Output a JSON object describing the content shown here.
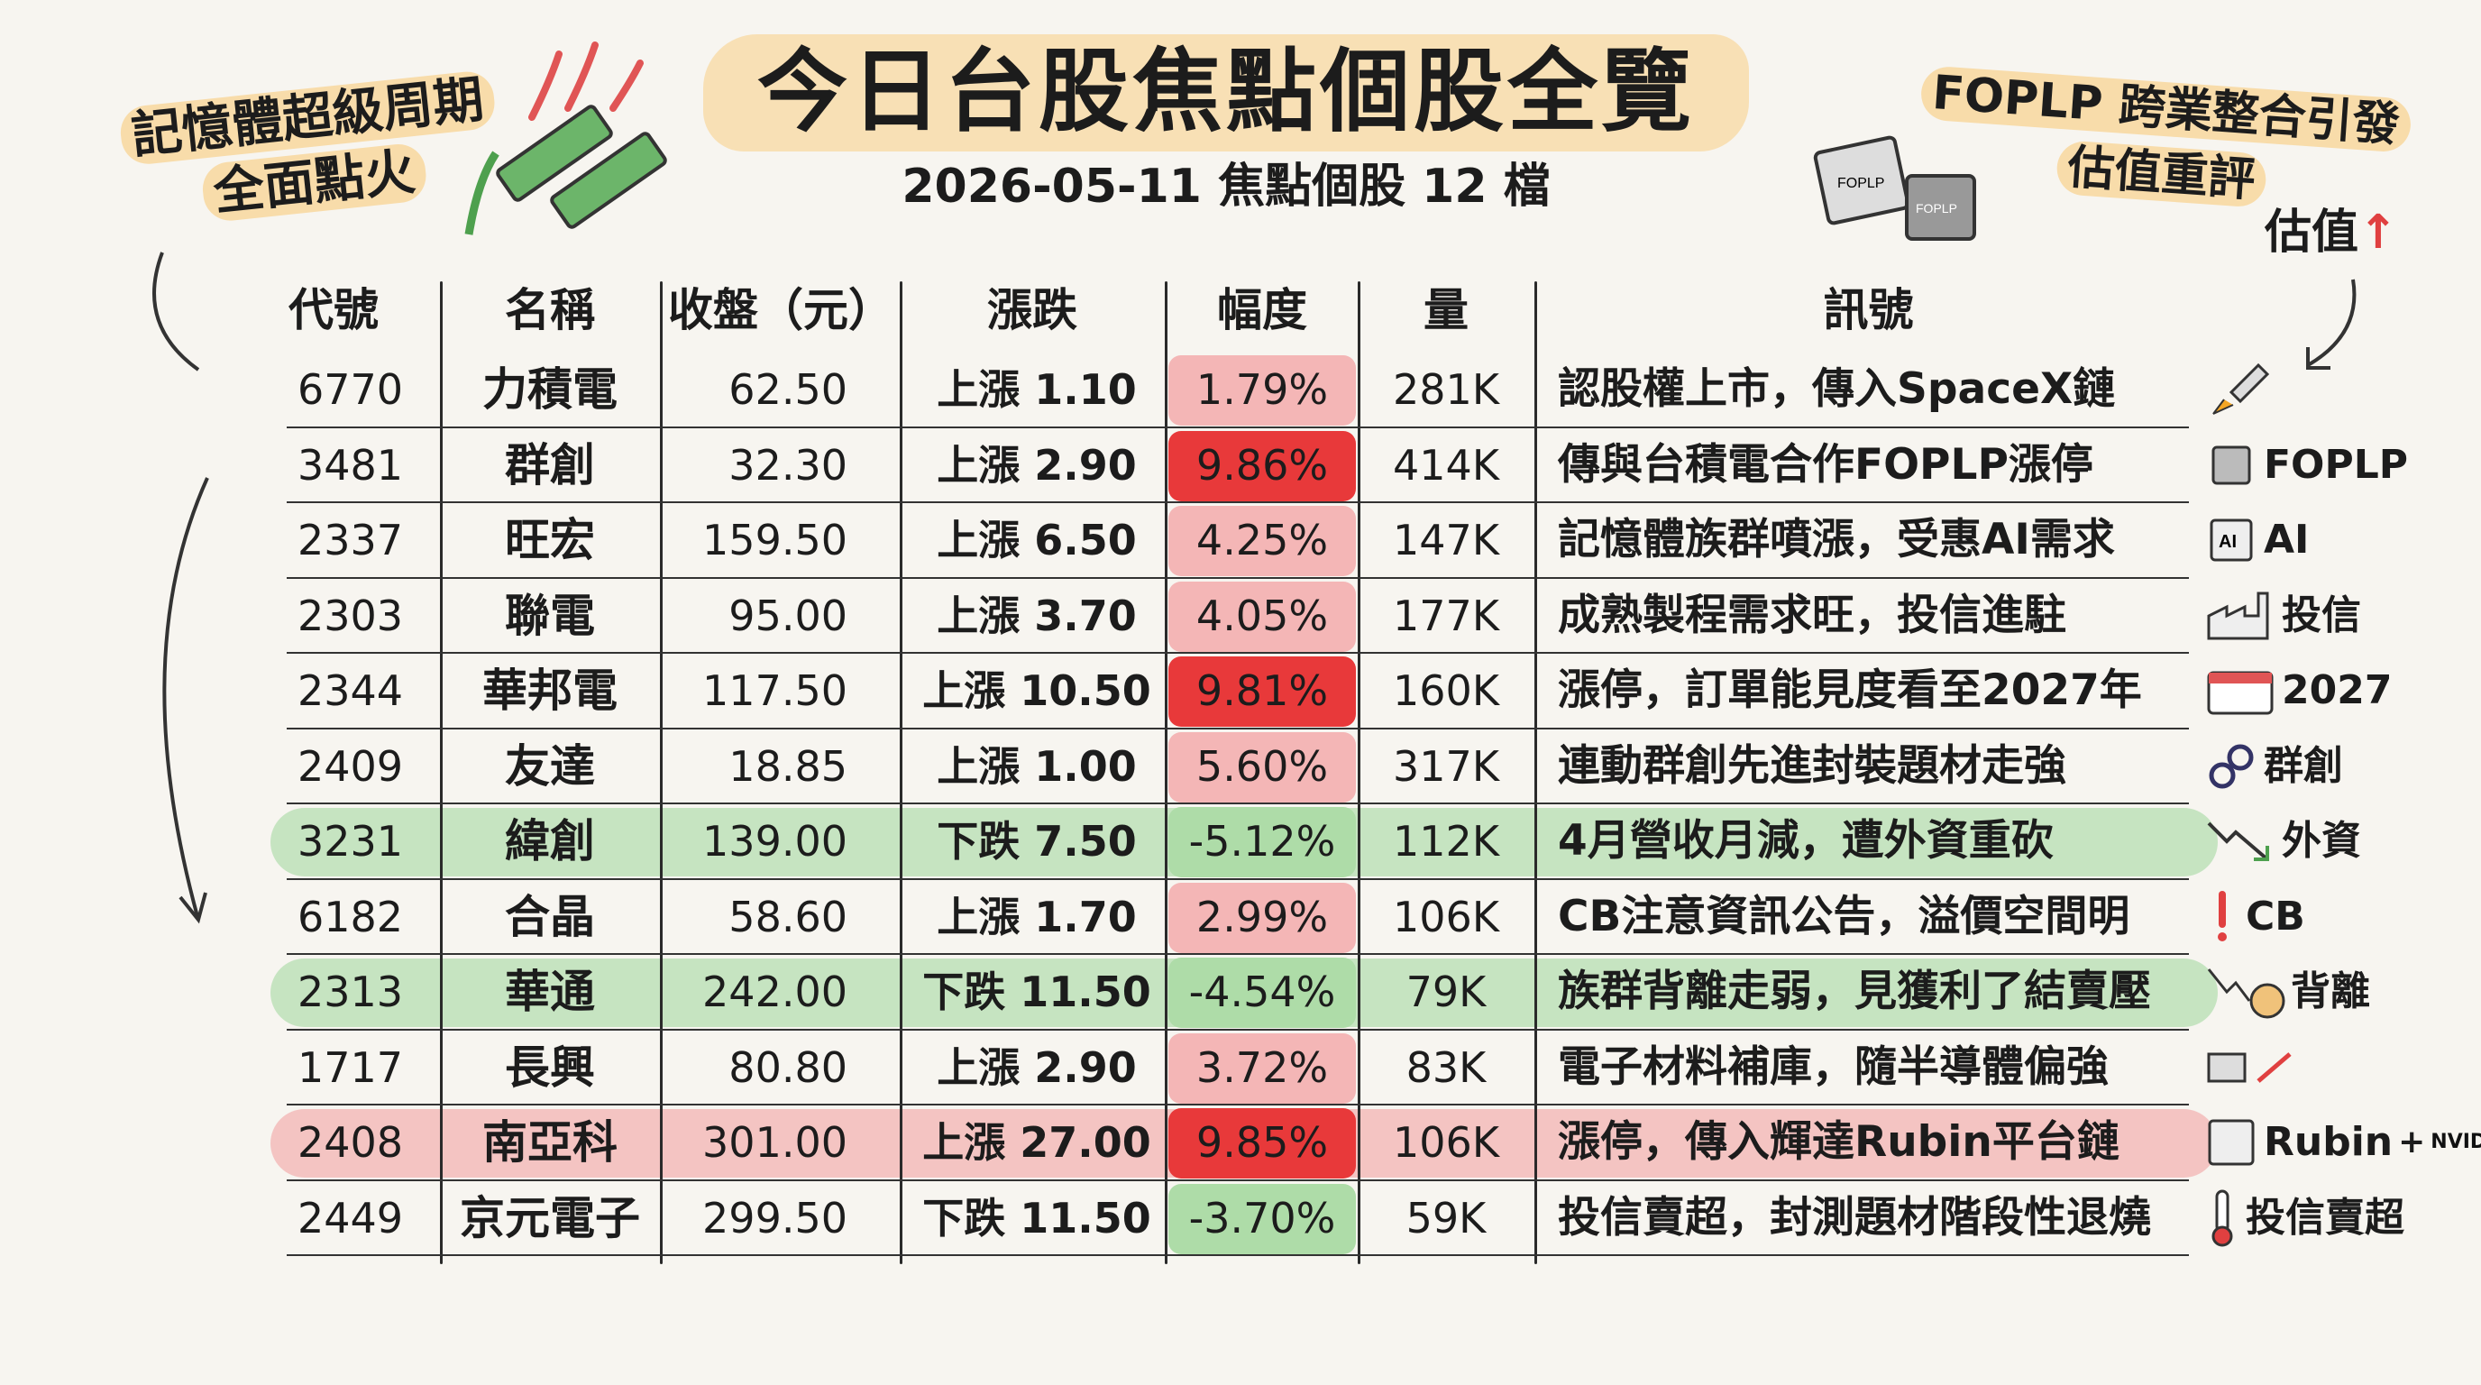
{
  "title": "今日台股焦點個股全覽",
  "subtitle": "2026-05-11 焦點個股 12 檔",
  "note_left": {
    "line1": "記憶體超級周期",
    "line2": "全面點火"
  },
  "note_right": {
    "line1": "FOPLP 跨業整合引發",
    "line2": "估值重評",
    "tag": "估值"
  },
  "icon_labels": {
    "chip_a": "FOPLP",
    "chip_b": "FOPLP"
  },
  "columns": [
    "代號",
    "名稱",
    "收盤（元）",
    "漲跌",
    "幅度",
    "量",
    "訊號"
  ],
  "rows": [
    {
      "code": "6770",
      "name": "力積電",
      "close": "62.50",
      "change": "上漲 1.10",
      "pct": "1.79%",
      "vol": "281K",
      "signal": "認股權上市，傳入SpaceX鏈",
      "tag": "",
      "icon": "rocket-icon",
      "dir": "up",
      "intensity": "light",
      "row_hl": "none"
    },
    {
      "code": "3481",
      "name": "群創",
      "close": "32.30",
      "change": "上漲 2.90",
      "pct": "9.86%",
      "vol": "414K",
      "signal": "傳與台積電合作FOPLP漲停",
      "tag": "FOPLP",
      "icon": "chip-icon",
      "dir": "up",
      "intensity": "strong",
      "row_hl": "none"
    },
    {
      "code": "2337",
      "name": "旺宏",
      "close": "159.50",
      "change": "上漲 6.50",
      "pct": "4.25%",
      "vol": "147K",
      "signal": "記憶體族群噴漲，受惠AI需求",
      "tag": "AI",
      "icon": "ai-chip-icon",
      "dir": "up",
      "intensity": "light",
      "row_hl": "none"
    },
    {
      "code": "2303",
      "name": "聯電",
      "close": "95.00",
      "change": "上漲 3.70",
      "pct": "4.05%",
      "vol": "177K",
      "signal": "成熟製程需求旺，投信進駐",
      "tag": "投信",
      "icon": "factory-icon",
      "dir": "up",
      "intensity": "light",
      "row_hl": "none"
    },
    {
      "code": "2344",
      "name": "華邦電",
      "close": "117.50",
      "change": "上漲 10.50",
      "pct": "9.81%",
      "vol": "160K",
      "signal": "漲停，訂單能見度看至2027年",
      "tag": "2027",
      "icon": "calendar-icon",
      "dir": "up",
      "intensity": "strong",
      "row_hl": "none"
    },
    {
      "code": "2409",
      "name": "友達",
      "close": "18.85",
      "change": "上漲 1.00",
      "pct": "5.60%",
      "vol": "317K",
      "signal": "連動群創先進封裝題材走強",
      "tag": "群創",
      "icon": "link-icon",
      "dir": "up",
      "intensity": "light",
      "row_hl": "none"
    },
    {
      "code": "3231",
      "name": "緯創",
      "close": "139.00",
      "change": "下跌 7.50",
      "pct": "-5.12%",
      "vol": "112K",
      "signal": "4月營收月減，遭外資重砍",
      "tag": "外資",
      "icon": "down-trend-icon",
      "dir": "down",
      "intensity": "light",
      "row_hl": "down"
    },
    {
      "code": "6182",
      "name": "合晶",
      "close": "58.60",
      "change": "上漲 1.70",
      "pct": "2.99%",
      "vol": "106K",
      "signal": "CB注意資訊公告，溢價空間明",
      "tag": "CB",
      "icon": "alert-icon",
      "dir": "up",
      "intensity": "light",
      "row_hl": "none"
    },
    {
      "code": "2313",
      "name": "華通",
      "close": "242.00",
      "change": "下跌 11.50",
      "pct": "-4.54%",
      "vol": "79K",
      "signal": "族群背離走弱，見獲利了結賣壓",
      "tag": "背離",
      "icon": "money-bag-icon",
      "dir": "down",
      "intensity": "light",
      "row_hl": "down"
    },
    {
      "code": "1717",
      "name": "長興",
      "close": "80.80",
      "change": "上漲 2.90",
      "pct": "3.72%",
      "vol": "83K",
      "signal": "電子材料補庫，隨半導體偏強",
      "tag": "",
      "icon": "material-icon",
      "dir": "up",
      "intensity": "light",
      "row_hl": "none"
    },
    {
      "code": "2408",
      "name": "南亞科",
      "close": "301.00",
      "change": "上漲 27.00",
      "pct": "9.85%",
      "vol": "106K",
      "signal": "漲停，傳入輝達Rubin平台鏈",
      "tag": "Rubin",
      "icon": "nvidia-icon",
      "dir": "up",
      "intensity": "strong",
      "row_hl": "up"
    },
    {
      "code": "2449",
      "name": "京元電子",
      "close": "299.50",
      "change": "下跌 11.50",
      "pct": "-3.70%",
      "vol": "59K",
      "signal": "投信賣超，封測題材階段性退燒",
      "tag": "投信賣超",
      "icon": "thermometer-icon",
      "dir": "down",
      "intensity": "light",
      "row_hl": "none"
    }
  ],
  "extras": {
    "nvidia_word": "NVIDIA.",
    "plus": "+"
  },
  "colors": {
    "up_strong": "#e8393a",
    "up_light": "#f4b6b6",
    "down_light": "#aedca8",
    "highlight": "#f8dcaa",
    "accent_red": "#e04040"
  }
}
